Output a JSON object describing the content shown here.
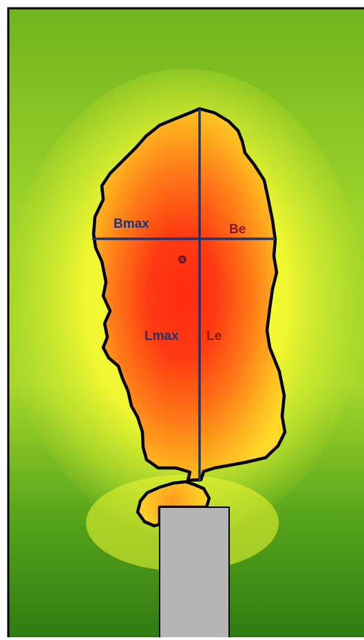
{
  "labels": {
    "bmax": "Bmax",
    "be": "Be",
    "lmax": "Lmax",
    "le": "Le"
  },
  "colors": {
    "outline": "#000000",
    "axis_lines": "#1c3470",
    "label_blue": "#1c3470",
    "label_red": "#8a1a0a",
    "centroid_marker": "#8b1a3a",
    "heat_core": "#ff2a10",
    "heat_mid": "#ff8a18",
    "heat_edge": "#ffff30",
    "background_light": "#9dd428",
    "background_dark": "#2e7c10",
    "nozzle": "#b5b5b5"
  }
}
